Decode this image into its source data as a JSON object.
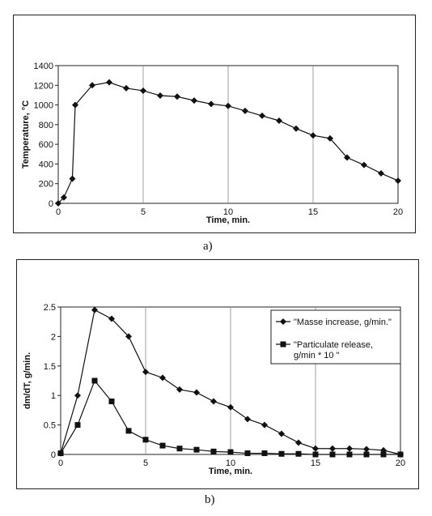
{
  "captions": {
    "a": "a)",
    "b": "b)"
  },
  "chart_data": [
    {
      "type": "line",
      "xlabel": "Time, min.",
      "ylabel": "Temperature, °C",
      "xlim": [
        0,
        20
      ],
      "ylim": [
        0,
        1400
      ],
      "xticks": [
        "0",
        "5",
        "10",
        "15",
        "20"
      ],
      "yticks": [
        "0",
        "200",
        "400",
        "600",
        "800",
        "1000",
        "1200",
        "1400"
      ],
      "grid": "vertical",
      "marker": "diamond",
      "series": [
        {
          "x": [
            0,
            0.33,
            0.83,
            1,
            2,
            3,
            4,
            5,
            6,
            7,
            8,
            9,
            10,
            11,
            12,
            13,
            14,
            15,
            16,
            17,
            18,
            19,
            20
          ],
          "values": [
            0,
            60,
            250,
            1000,
            1200,
            1230,
            1170,
            1145,
            1095,
            1085,
            1045,
            1010,
            990,
            940,
            890,
            840,
            760,
            690,
            660,
            465,
            390,
            305,
            230
          ]
        }
      ]
    },
    {
      "type": "line",
      "xlabel": "Time, min.",
      "ylabel": "dm/dT, g/min.",
      "xlim": [
        0,
        20
      ],
      "ylim": [
        0,
        2.5
      ],
      "xticks": [
        "0",
        "5",
        "10",
        "15",
        "20"
      ],
      "yticks": [
        "0",
        "0.5",
        "1",
        "1.5",
        "2",
        "2.5"
      ],
      "grid": "vertical",
      "legend": "top-right",
      "series": [
        {
          "name": "\"Masse increase, g/min.\"",
          "marker": "diamond",
          "x": [
            0,
            1,
            2,
            3,
            4,
            5,
            6,
            7,
            8,
            9,
            10,
            11,
            12,
            13,
            14,
            15,
            16,
            17,
            18,
            19,
            20
          ],
          "values": [
            0.02,
            1.0,
            2.45,
            2.3,
            2.0,
            1.4,
            1.3,
            1.1,
            1.05,
            0.9,
            0.8,
            0.6,
            0.5,
            0.35,
            0.2,
            0.1,
            0.1,
            0.1,
            0.09,
            0.07,
            0.0
          ]
        },
        {
          "name": "\"Particulate release, g/min * 10 \"",
          "marker": "square",
          "x": [
            0,
            1,
            2,
            3,
            4,
            5,
            6,
            7,
            8,
            9,
            10,
            11,
            12,
            13,
            14,
            15,
            16,
            17,
            18,
            19,
            20
          ],
          "values": [
            0.02,
            0.5,
            1.25,
            0.9,
            0.4,
            0.25,
            0.15,
            0.1,
            0.08,
            0.05,
            0.04,
            0.02,
            0.02,
            0.01,
            0.01,
            0.0,
            0.0,
            0.0,
            0.0,
            0.0,
            0.0
          ]
        }
      ],
      "legend_lines": [
        [
          "\"Masse increase, g/min.\""
        ],
        [
          "\"Particulate release,",
          "g/min * 10 \""
        ]
      ]
    }
  ]
}
